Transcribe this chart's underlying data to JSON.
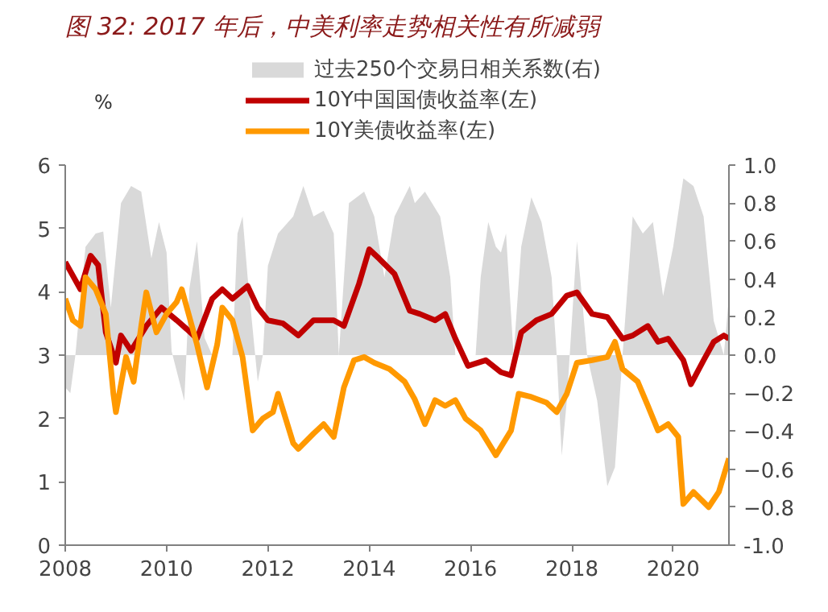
{
  "chart_data": {
    "type": "line",
    "title": "图 32: 2017 年后，中美利率走势相关性有所减弱",
    "ylabel": "%",
    "xlim": [
      2008,
      2021.1
    ],
    "xticks": [
      2008,
      2010,
      2012,
      2014,
      2016,
      2018,
      2020
    ],
    "ylim": [
      0,
      6
    ],
    "yticks": [
      0,
      1,
      2,
      3,
      4,
      5,
      6
    ],
    "y2lim": [
      -1,
      1
    ],
    "y2ticks": [
      {
        "value": -1,
        "label": "-1.0"
      },
      -0.8,
      -0.6,
      -0.4,
      -0.2,
      {
        "value": 0,
        "label": "0.0"
      },
      0.2,
      0.4,
      0.6,
      0.8,
      {
        "value": 1,
        "label": "1.0"
      }
    ],
    "legend": "top",
    "grid": false,
    "series": [
      {
        "name": "过去250个交易日相关系数(右)",
        "type": "area",
        "axis": "y2",
        "color": "#d9d9d9",
        "x": [
          2008.0,
          2008.1,
          2008.2,
          2008.4,
          2008.6,
          2008.75,
          2008.9,
          2009.1,
          2009.3,
          2009.5,
          2009.7,
          2009.85,
          2010.0,
          2010.1,
          2010.35,
          2010.45,
          2010.6,
          2010.75,
          2010.9,
          2011.3,
          2011.4,
          2011.5,
          2011.6,
          2011.8,
          2011.9,
          2012.0,
          2012.2,
          2012.5,
          2012.7,
          2012.9,
          2013.1,
          2013.3,
          2013.4,
          2013.6,
          2013.9,
          2014.1,
          2014.3,
          2014.5,
          2014.8,
          2014.9,
          2015.1,
          2015.4,
          2015.6,
          2015.7,
          2016.1,
          2016.2,
          2016.35,
          2016.5,
          2016.6,
          2016.7,
          2016.85,
          2017.0,
          2017.2,
          2017.4,
          2017.6,
          2017.7,
          2017.8,
          2017.9,
          2018.1,
          2018.3,
          2018.5,
          2018.7,
          2018.85,
          2019.0,
          2019.2,
          2019.4,
          2019.6,
          2019.8,
          2020.0,
          2020.2,
          2020.4,
          2020.6,
          2020.8,
          2021.0,
          2021.1
        ],
        "values": [
          -0.17,
          -0.2,
          0.0,
          0.57,
          0.64,
          0.65,
          0.25,
          0.8,
          0.89,
          0.86,
          0.51,
          0.7,
          0.54,
          0.02,
          -0.24,
          0.35,
          0.6,
          0.09,
          0.0,
          0.0,
          0.64,
          0.73,
          0.41,
          -0.14,
          0.0,
          0.47,
          0.64,
          0.73,
          0.89,
          0.73,
          0.76,
          0.64,
          0.0,
          0.8,
          0.86,
          0.73,
          0.41,
          0.73,
          0.89,
          0.8,
          0.86,
          0.73,
          0.41,
          0.0,
          0.0,
          0.41,
          0.7,
          0.57,
          0.54,
          0.64,
          0.0,
          0.57,
          0.83,
          0.7,
          0.41,
          0.0,
          -0.53,
          -0.24,
          0.6,
          0.0,
          -0.24,
          -0.69,
          -0.59,
          0.0,
          0.73,
          0.64,
          0.7,
          0.31,
          0.57,
          0.93,
          0.89,
          0.73,
          0.18,
          0.0,
          0.31
        ]
      },
      {
        "name": "10Y中国国债收益率(左)",
        "type": "line",
        "color": "#c00000",
        "x": [
          2008.0,
          2008.3,
          2008.5,
          2008.65,
          2008.8,
          2009.0,
          2009.1,
          2009.3,
          2009.6,
          2009.9,
          2010.2,
          2010.4,
          2010.6,
          2010.9,
          2011.1,
          2011.3,
          2011.6,
          2011.8,
          2012.0,
          2012.3,
          2012.6,
          2012.9,
          2013.3,
          2013.5,
          2013.8,
          2014.0,
          2014.2,
          2014.5,
          2014.8,
          2015.0,
          2015.3,
          2015.5,
          2015.7,
          2015.95,
          2016.3,
          2016.6,
          2016.8,
          2017.0,
          2017.3,
          2017.6,
          2017.9,
          2018.1,
          2018.4,
          2018.7,
          2019.0,
          2019.2,
          2019.5,
          2019.7,
          2019.9,
          2020.2,
          2020.35,
          2020.6,
          2020.8,
          2021.0,
          2021.1
        ],
        "values": [
          4.47,
          4.04,
          4.57,
          4.42,
          3.36,
          2.88,
          3.31,
          3.07,
          3.46,
          3.75,
          3.55,
          3.41,
          3.26,
          3.89,
          4.04,
          3.89,
          4.09,
          3.75,
          3.55,
          3.5,
          3.31,
          3.55,
          3.55,
          3.46,
          4.13,
          4.67,
          4.52,
          4.28,
          3.7,
          3.65,
          3.55,
          3.65,
          3.26,
          2.83,
          2.92,
          2.73,
          2.68,
          3.36,
          3.55,
          3.65,
          3.94,
          3.99,
          3.65,
          3.6,
          3.26,
          3.31,
          3.46,
          3.21,
          3.26,
          2.92,
          2.54,
          2.92,
          3.21,
          3.31,
          3.26
        ]
      },
      {
        "name": "10Y美债收益率(左)",
        "type": "line",
        "color": "#ff9900",
        "x": [
          2008.0,
          2008.15,
          2008.3,
          2008.4,
          2008.6,
          2008.8,
          2008.95,
          2009.0,
          2009.2,
          2009.35,
          2009.5,
          2009.6,
          2009.8,
          2010.0,
          2010.2,
          2010.3,
          2010.6,
          2010.8,
          2011.0,
          2011.1,
          2011.3,
          2011.5,
          2011.7,
          2011.9,
          2012.1,
          2012.2,
          2012.5,
          2012.6,
          2012.9,
          2013.1,
          2013.3,
          2013.5,
          2013.7,
          2013.9,
          2014.1,
          2014.4,
          2014.7,
          2014.9,
          2015.1,
          2015.3,
          2015.5,
          2015.7,
          2015.9,
          2016.2,
          2016.5,
          2016.8,
          2016.95,
          2017.2,
          2017.5,
          2017.7,
          2017.9,
          2018.1,
          2018.4,
          2018.7,
          2018.85,
          2019.0,
          2019.3,
          2019.5,
          2019.7,
          2019.9,
          2020.1,
          2020.2,
          2020.4,
          2020.7,
          2020.9,
          2021.1
        ],
        "values": [
          3.89,
          3.55,
          3.46,
          4.23,
          4.04,
          3.65,
          2.39,
          2.1,
          2.97,
          2.58,
          3.46,
          3.99,
          3.36,
          3.65,
          3.84,
          4.04,
          3.17,
          2.49,
          3.17,
          3.75,
          3.55,
          2.97,
          1.81,
          2.0,
          2.1,
          2.39,
          1.61,
          1.52,
          1.76,
          1.91,
          1.71,
          2.49,
          2.92,
          2.97,
          2.88,
          2.78,
          2.58,
          2.3,
          1.91,
          2.29,
          2.2,
          2.29,
          2.0,
          1.81,
          1.42,
          1.81,
          2.39,
          2.34,
          2.25,
          2.1,
          2.39,
          2.88,
          2.92,
          2.97,
          3.21,
          2.78,
          2.58,
          2.2,
          1.81,
          1.91,
          1.71,
          0.65,
          0.84,
          0.6,
          0.84,
          1.37
        ]
      }
    ]
  }
}
